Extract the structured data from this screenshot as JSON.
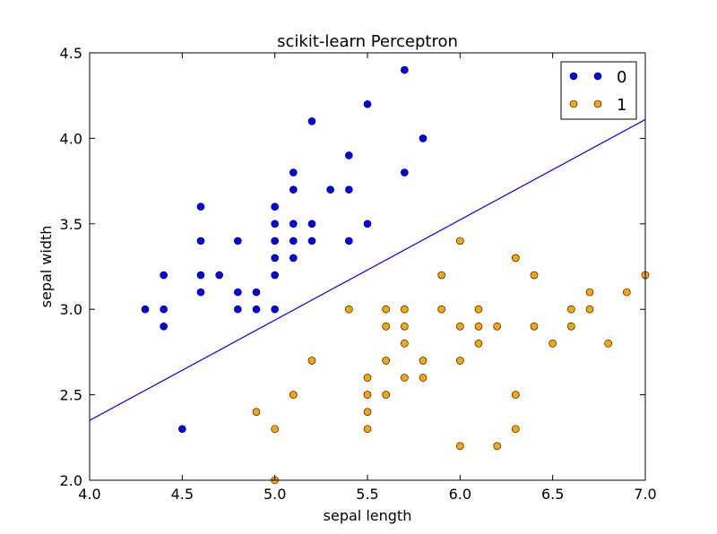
{
  "chart_data": {
    "type": "scatter",
    "title": "scikit-learn Perceptron",
    "xlabel": "sepal length",
    "ylabel": "sepal width",
    "xlim": [
      4.0,
      7.0
    ],
    "ylim": [
      2.0,
      4.5
    ],
    "x_ticks": [
      "4.0",
      "4.5",
      "5.0",
      "5.5",
      "6.0",
      "6.5",
      "7.0"
    ],
    "y_ticks": [
      "2.0",
      "2.5",
      "3.0",
      "3.5",
      "4.0",
      "4.5"
    ],
    "grid": false,
    "legend_position": "top-right",
    "series": [
      {
        "name": "0",
        "color": "#0000ff",
        "points": [
          [
            4.3,
            3.0
          ],
          [
            4.4,
            2.9
          ],
          [
            4.4,
            3.0
          ],
          [
            4.4,
            3.2
          ],
          [
            4.5,
            2.3
          ],
          [
            4.6,
            3.1
          ],
          [
            4.6,
            3.2
          ],
          [
            4.6,
            3.4
          ],
          [
            4.6,
            3.6
          ],
          [
            4.7,
            3.2
          ],
          [
            4.8,
            3.0
          ],
          [
            4.8,
            3.1
          ],
          [
            4.8,
            3.4
          ],
          [
            4.9,
            3.0
          ],
          [
            4.9,
            3.1
          ],
          [
            5.0,
            3.0
          ],
          [
            5.0,
            3.2
          ],
          [
            5.0,
            3.3
          ],
          [
            5.0,
            3.4
          ],
          [
            5.0,
            3.5
          ],
          [
            5.0,
            3.6
          ],
          [
            5.1,
            3.3
          ],
          [
            5.1,
            3.4
          ],
          [
            5.1,
            3.5
          ],
          [
            5.1,
            3.7
          ],
          [
            5.1,
            3.8
          ],
          [
            5.2,
            3.4
          ],
          [
            5.2,
            3.5
          ],
          [
            5.2,
            4.1
          ],
          [
            5.3,
            3.7
          ],
          [
            5.4,
            3.4
          ],
          [
            5.4,
            3.7
          ],
          [
            5.4,
            3.9
          ],
          [
            5.5,
            3.5
          ],
          [
            5.5,
            4.2
          ],
          [
            5.7,
            3.8
          ],
          [
            5.7,
            4.4
          ],
          [
            5.8,
            4.0
          ]
        ]
      },
      {
        "name": "1",
        "color": "#ffa500",
        "points": [
          [
            4.9,
            2.4
          ],
          [
            5.0,
            2.0
          ],
          [
            5.0,
            2.3
          ],
          [
            5.1,
            2.5
          ],
          [
            5.2,
            2.7
          ],
          [
            5.4,
            3.0
          ],
          [
            5.5,
            2.3
          ],
          [
            5.5,
            2.4
          ],
          [
            5.5,
            2.5
          ],
          [
            5.5,
            2.6
          ],
          [
            5.6,
            2.5
          ],
          [
            5.6,
            2.7
          ],
          [
            5.6,
            2.9
          ],
          [
            5.6,
            3.0
          ],
          [
            5.7,
            2.6
          ],
          [
            5.7,
            2.8
          ],
          [
            5.7,
            2.9
          ],
          [
            5.7,
            3.0
          ],
          [
            5.8,
            2.6
          ],
          [
            5.8,
            2.7
          ],
          [
            5.9,
            3.0
          ],
          [
            5.9,
            3.2
          ],
          [
            6.0,
            2.2
          ],
          [
            6.0,
            2.7
          ],
          [
            6.0,
            2.9
          ],
          [
            6.0,
            3.4
          ],
          [
            6.1,
            2.8
          ],
          [
            6.1,
            2.9
          ],
          [
            6.1,
            3.0
          ],
          [
            6.2,
            2.2
          ],
          [
            6.2,
            2.9
          ],
          [
            6.3,
            2.3
          ],
          [
            6.3,
            2.5
          ],
          [
            6.3,
            3.3
          ],
          [
            6.4,
            2.9
          ],
          [
            6.4,
            3.2
          ],
          [
            6.5,
            2.8
          ],
          [
            6.6,
            2.9
          ],
          [
            6.6,
            3.0
          ],
          [
            6.7,
            3.0
          ],
          [
            6.7,
            3.1
          ],
          [
            6.8,
            2.8
          ],
          [
            6.9,
            3.1
          ],
          [
            7.0,
            3.2
          ]
        ]
      }
    ],
    "decision_boundary": {
      "color": "#0000ff",
      "points": [
        [
          4.0,
          2.35
        ],
        [
          7.0,
          4.11
        ]
      ]
    }
  }
}
